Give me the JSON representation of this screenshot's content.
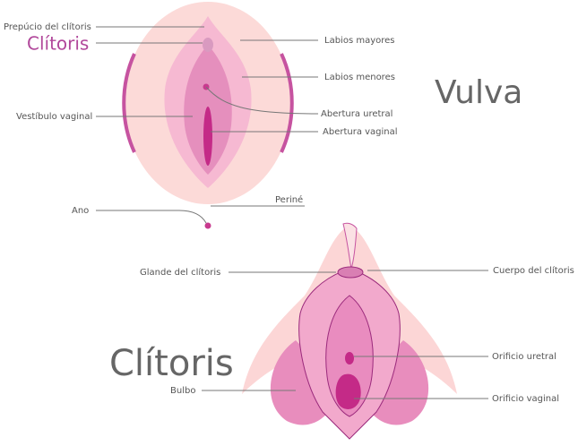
{
  "vulva": {
    "title": "Vulva",
    "labels": [
      "Prepúcio del clítoris",
      "Clítoris",
      "Labios mayores",
      "Labios menores",
      "Vestíbulo vaginal",
      "Abertura uretral",
      "Abertura vaginal",
      "Periné",
      "Ano"
    ]
  },
  "clitoris": {
    "title": "Clítoris",
    "labels": [
      "Glande del clítoris",
      "Cuerpo del clítoris",
      "Bulbo",
      "Orificio uretral",
      "Orificio vaginal"
    ]
  }
}
